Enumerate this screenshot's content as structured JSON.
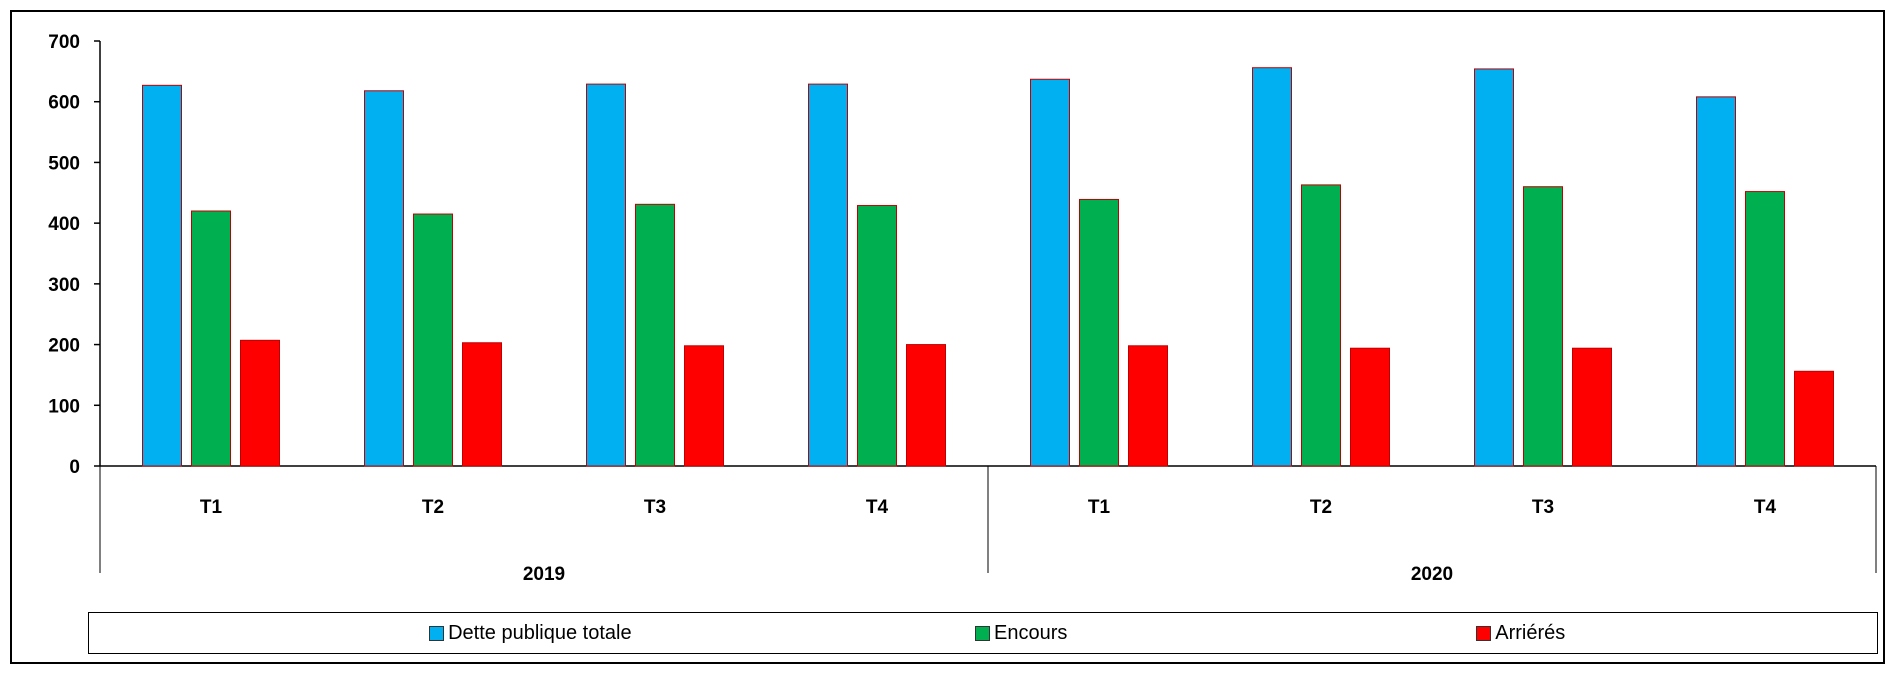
{
  "chart_data": {
    "type": "bar",
    "title": "",
    "xlabel": "",
    "ylabel": "",
    "ylim": [
      0,
      700
    ],
    "yticks": [
      "0",
      "100",
      "200",
      "300",
      "400",
      "500",
      "600",
      "700"
    ],
    "groups": [
      {
        "label": "2019",
        "categories": [
          "T1",
          "T2",
          "T3",
          "T4"
        ]
      },
      {
        "label": "2020",
        "categories": [
          "T1",
          "T2",
          "T3",
          "T4"
        ]
      }
    ],
    "categories": [
      "T1",
      "T2",
      "T3",
      "T4",
      "T1",
      "T2",
      "T3",
      "T4"
    ],
    "series": [
      {
        "name": "Dette publique totale",
        "color": "#00B0F0",
        "values": [
          627,
          618,
          629,
          629,
          637,
          656,
          654,
          608
        ]
      },
      {
        "name": "Encours",
        "color": "#00B050",
        "values": [
          420,
          415,
          431,
          429,
          439,
          463,
          460,
          452
        ]
      },
      {
        "name": "Arriérés",
        "color": "#FF0000",
        "values": [
          207,
          203,
          198,
          200,
          198,
          194,
          194,
          156
        ]
      }
    ],
    "bar_border_color": "#C00000",
    "grid": false,
    "legend_position": "bottom"
  }
}
